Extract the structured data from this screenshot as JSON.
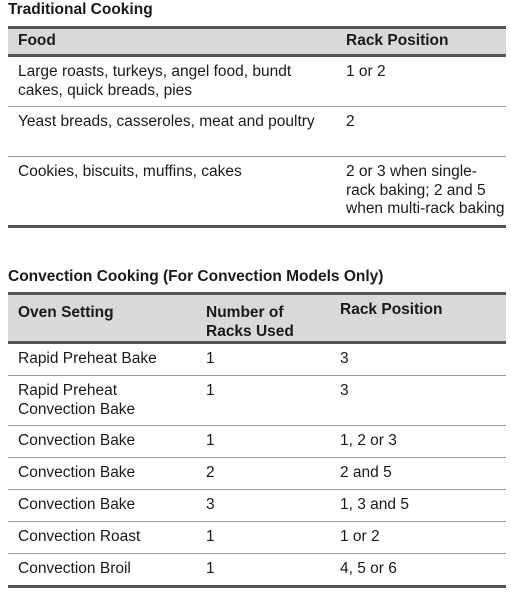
{
  "traditional": {
    "title": "Traditional Cooking",
    "headers": [
      "Food",
      "Rack Position"
    ],
    "rows": [
      [
        "Large roasts, turkeys, angel food, bundt cakes, quick breads, pies",
        "1 or 2"
      ],
      [
        "Yeast breads, casseroles, meat and poultry",
        "2"
      ],
      [
        "Cookies, biscuits, muffins, cakes",
        "2 or 3 when single-rack baking; 2 and 5 when multi-rack baking"
      ]
    ]
  },
  "convection": {
    "title": "Convection Cooking (For Convection Models Only)",
    "headers": [
      "Oven Setting",
      "Number of Racks Used",
      "Rack Position"
    ],
    "rows": [
      [
        "Rapid Preheat Bake",
        "1",
        "3"
      ],
      [
        "Rapid Preheat Convection Bake",
        "1",
        "3"
      ],
      [
        "Convection Bake",
        "1",
        "1, 2 or 3"
      ],
      [
        "Convection Bake",
        "2",
        "2 and 5"
      ],
      [
        "Convection Bake",
        "3",
        "1, 3 and 5"
      ],
      [
        "Convection Roast",
        "1",
        "1 or 2"
      ],
      [
        "Convection Broil",
        "1",
        "4, 5 or 6"
      ]
    ]
  }
}
